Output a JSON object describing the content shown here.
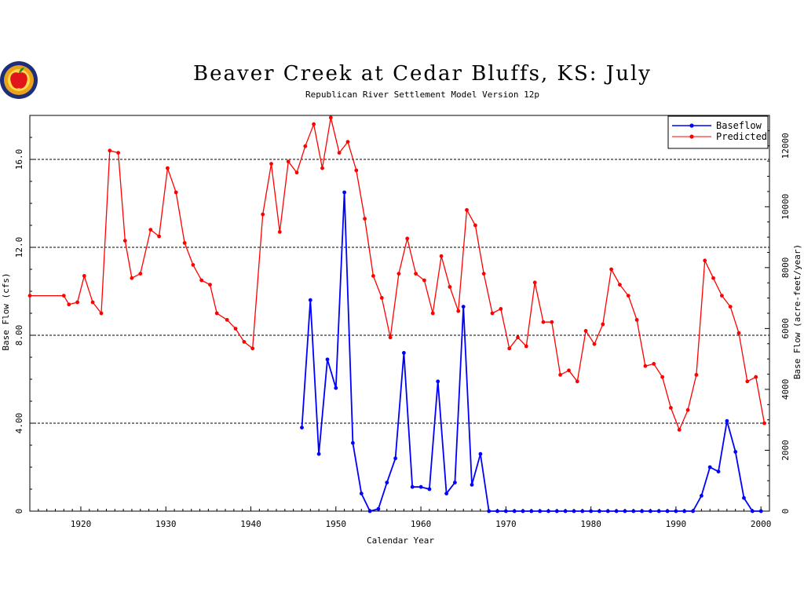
{
  "logo": {
    "name": "apple-logo"
  },
  "chart_data": {
    "type": "line",
    "title": "Beaver Creek at Cedar Bluffs, KS: July",
    "subtitle": "Republican River Settlement Model Version 12p",
    "xlabel": "Calendar Year",
    "ylabel": "Base Flow (cfs)",
    "ylabel_right": "Base Flow (acre-feet/year)",
    "xlim": [
      1914,
      2001
    ],
    "ylim": [
      0,
      18
    ],
    "ylim_right_max": 13000,
    "x_ticks": [
      "1920",
      "1930",
      "1940",
      "1950",
      "1960",
      "1970",
      "1980",
      "1990",
      "2000"
    ],
    "y_ticks": [
      "0",
      "4.00",
      "8.00",
      "12.0",
      "16.0"
    ],
    "y_ticks_right": [
      "0",
      "2000",
      "4000",
      "6000",
      "8000",
      "10000",
      "12000"
    ],
    "grid": "horizontal dashed at 4, 8, 12, 16",
    "legend": "top-right",
    "series": [
      {
        "name": "Baseflow",
        "color": "#0000ff",
        "points": [
          [
            1946,
            3.8
          ],
          [
            1947,
            9.6
          ],
          [
            1948,
            2.6
          ],
          [
            1949,
            6.9
          ],
          [
            1950,
            5.6
          ],
          [
            1951,
            14.5
          ],
          [
            1952,
            3.1
          ],
          [
            1953,
            0.8
          ],
          [
            1954,
            0.0
          ],
          [
            1955,
            0.1
          ],
          [
            1956,
            1.3
          ],
          [
            1957,
            2.4
          ],
          [
            1958,
            7.2
          ],
          [
            1959,
            1.1
          ],
          [
            1960,
            1.1
          ],
          [
            1961,
            1.0
          ],
          [
            1962,
            5.9
          ],
          [
            1963,
            0.8
          ],
          [
            1964,
            1.3
          ],
          [
            1965,
            9.3
          ],
          [
            1966,
            1.2
          ],
          [
            1967,
            2.6
          ],
          [
            1968,
            0.0
          ],
          [
            1969,
            0.0
          ],
          [
            1970,
            0.0
          ],
          [
            1971,
            0.0
          ],
          [
            1972,
            0.0
          ],
          [
            1973,
            0.0
          ],
          [
            1974,
            0.0
          ],
          [
            1975,
            0.0
          ],
          [
            1976,
            0.0
          ],
          [
            1977,
            0.0
          ],
          [
            1978,
            0.0
          ],
          [
            1979,
            0.0
          ],
          [
            1980,
            0.0
          ],
          [
            1981,
            0.0
          ],
          [
            1982,
            0.0
          ],
          [
            1983,
            0.0
          ],
          [
            1984,
            0.0
          ],
          [
            1985,
            0.0
          ],
          [
            1986,
            0.0
          ],
          [
            1987,
            0.0
          ],
          [
            1988,
            0.0
          ],
          [
            1989,
            0.0
          ],
          [
            1990,
            0.0
          ],
          [
            1991,
            0.0
          ],
          [
            1992,
            0.0
          ],
          [
            1993,
            0.7
          ],
          [
            1994,
            2.0
          ],
          [
            1995,
            1.8
          ],
          [
            1996,
            4.1
          ],
          [
            1997,
            2.7
          ],
          [
            1998,
            0.6
          ],
          [
            1999,
            0.0
          ],
          [
            2000,
            0.0
          ]
        ]
      },
      {
        "name": "Predicted",
        "color": "#ff0000",
        "points": [
          [
            1914,
            9.8
          ],
          [
            1918,
            9.8
          ],
          [
            1918.6,
            9.4
          ],
          [
            1919.6,
            9.5
          ],
          [
            1920.4,
            10.7
          ],
          [
            1921.4,
            9.5
          ],
          [
            1922.4,
            9.0
          ],
          [
            1923.4,
            16.4
          ],
          [
            1924.4,
            16.3
          ],
          [
            1925.2,
            12.3
          ],
          [
            1926,
            10.6
          ],
          [
            1927,
            10.8
          ],
          [
            1928.2,
            12.8
          ],
          [
            1929.2,
            12.5
          ],
          [
            1930.2,
            15.6
          ],
          [
            1931.2,
            14.5
          ],
          [
            1932.2,
            12.2
          ],
          [
            1933.2,
            11.2
          ],
          [
            1934.2,
            10.5
          ],
          [
            1935.2,
            10.3
          ],
          [
            1936,
            9.0
          ],
          [
            1937.2,
            8.7
          ],
          [
            1938.2,
            8.3
          ],
          [
            1939.2,
            7.7
          ],
          [
            1940.2,
            7.4
          ],
          [
            1941.4,
            13.5
          ],
          [
            1942.4,
            15.8
          ],
          [
            1943.4,
            12.7
          ],
          [
            1944.4,
            15.9
          ],
          [
            1945.4,
            15.4
          ],
          [
            1946.4,
            16.6
          ],
          [
            1947.4,
            17.6
          ],
          [
            1948.4,
            15.6
          ],
          [
            1949.4,
            17.9
          ],
          [
            1950.4,
            16.3
          ],
          [
            1951.4,
            16.8
          ],
          [
            1952.4,
            15.5
          ],
          [
            1953.4,
            13.3
          ],
          [
            1954.4,
            10.7
          ],
          [
            1955.4,
            9.7
          ],
          [
            1956.4,
            7.9
          ],
          [
            1957.4,
            10.8
          ],
          [
            1958.4,
            12.4
          ],
          [
            1959.4,
            10.8
          ],
          [
            1960.4,
            10.5
          ],
          [
            1961.4,
            9.0
          ],
          [
            1962.4,
            11.6
          ],
          [
            1963.4,
            10.2
          ],
          [
            1964.4,
            9.1
          ],
          [
            1965.4,
            13.7
          ],
          [
            1966.4,
            13.0
          ],
          [
            1967.4,
            10.8
          ],
          [
            1968.4,
            9.0
          ],
          [
            1969.4,
            9.2
          ],
          [
            1970.4,
            7.4
          ],
          [
            1971.4,
            7.9
          ],
          [
            1972.4,
            7.5
          ],
          [
            1973.4,
            10.4
          ],
          [
            1974.4,
            8.6
          ],
          [
            1975.4,
            8.6
          ],
          [
            1976.4,
            6.2
          ],
          [
            1977.4,
            6.4
          ],
          [
            1978.4,
            5.9
          ],
          [
            1979.4,
            8.2
          ],
          [
            1980.4,
            7.6
          ],
          [
            1981.4,
            8.5
          ],
          [
            1982.4,
            11.0
          ],
          [
            1983.4,
            10.3
          ],
          [
            1984.4,
            9.8
          ],
          [
            1985.4,
            8.7
          ],
          [
            1986.4,
            6.6
          ],
          [
            1987.4,
            6.7
          ],
          [
            1988.4,
            6.1
          ],
          [
            1989.4,
            4.7
          ],
          [
            1990.4,
            3.7
          ],
          [
            1991.4,
            4.6
          ],
          [
            1992.4,
            6.2
          ],
          [
            1993.4,
            11.4
          ],
          [
            1994.4,
            10.6
          ],
          [
            1995.4,
            9.8
          ],
          [
            1996.4,
            9.3
          ],
          [
            1997.4,
            8.1
          ],
          [
            1998.4,
            5.9
          ],
          [
            1999.4,
            6.1
          ],
          [
            2000.4,
            4.0
          ]
        ]
      }
    ]
  }
}
